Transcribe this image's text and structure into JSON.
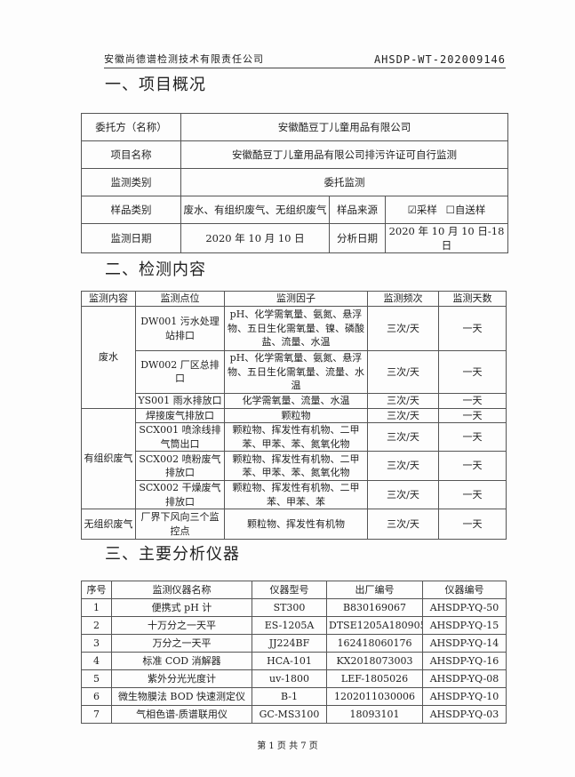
{
  "header": {
    "company": "安徽尚德谱检测技术有限责任公司",
    "report_no": "AHSDP-WT-202009146"
  },
  "section1": {
    "title": "一、项目概况",
    "client_label": "委托方（名称）",
    "client": "安徽酷豆丁儿童用品有限公司",
    "project_label": "项目名称",
    "project": "安徽酷豆丁儿童用品有限公司排污许证可自行监测",
    "type_label": "监测类别",
    "type": "委托监测",
    "sample_type_label": "样品类别",
    "sample_type": "废水、有组织废气、无组织废气",
    "sample_source_label": "样品来源",
    "sample_source_options": [
      {
        "label": "☑采样",
        "checked": true
      },
      {
        "label": "☐自送样",
        "checked": false
      }
    ],
    "monitor_date_label": "监测日期",
    "monitor_date": "2020 年 10 月 10 日",
    "analysis_date_label": "分析日期",
    "analysis_date": "2020 年 10 月 10 日-18 日"
  },
  "section2": {
    "title": "二、检测内容",
    "headers": [
      "监测内容",
      "监测点位",
      "监测因子",
      "监测频次",
      "监测天数"
    ],
    "groups": [
      "废水",
      "有组织废气",
      "无组织废气"
    ],
    "rows": [
      {
        "point": "DW001 污水处理站排口",
        "factors": "pH、化学需氧量、氨氮、悬浮物、五日生化需氧量、镍、磷酸盐、流量、水温",
        "freq": "三次/天",
        "days": "一天"
      },
      {
        "point": "DW002 厂区总排口",
        "factors": "pH、化学需氧量、氨氮、悬浮物、五日生化需氧量、流量、水温",
        "freq": "三次/天",
        "days": "一天"
      },
      {
        "point": "YS001 雨水排放口",
        "factors": "化学需氧量、流量、水温",
        "freq": "三次/天",
        "days": "一天"
      },
      {
        "point": "焊接废气排放口",
        "factors": "颗粒物",
        "freq": "三次/天",
        "days": "一天"
      },
      {
        "point": "SCX001 喷涂线排气筒出口",
        "factors": "颗粒物、挥发性有机物、二甲苯、甲苯、苯、氮氧化物",
        "freq": "三次/天",
        "days": "一天"
      },
      {
        "point": "SCX002 喷粉废气排放口",
        "factors": "颗粒物、挥发性有机物、二甲苯、甲苯、苯、氮氧化物",
        "freq": "三次/天",
        "days": "一天"
      },
      {
        "point": "SCX002 干燥废气排放口",
        "factors": "颗粒物、挥发性有机物、二甲苯、甲苯、苯",
        "freq": "三次/天",
        "days": "一天"
      },
      {
        "point": "厂界下风向三个监控点",
        "factors": "颗粒物、挥发性有机物",
        "freq": "三次/天",
        "days": "一天"
      }
    ]
  },
  "section3": {
    "title": "三、主要分析仪器",
    "headers": [
      "序号",
      "监测仪器名称",
      "仪器型号",
      "出厂编号",
      "仪器编号"
    ],
    "rows": [
      [
        "1",
        "便携式 pH 计",
        "ST300",
        "B830169067",
        "AHSDP-YQ-50"
      ],
      [
        "2",
        "十万分之一天平",
        "ES-1205A",
        "DTSE1205A18090501",
        "AHSDP-YQ-15"
      ],
      [
        "3",
        "万分之一天平",
        "JJ224BF",
        "162418060176",
        "AHSDP-YQ-14"
      ],
      [
        "4",
        "标准 COD 消解器",
        "HCA-101",
        "KX2018073003",
        "AHSDP-YQ-16"
      ],
      [
        "5",
        "紫外分光光度计",
        "uv-1800",
        "LEF-1805026",
        "AHSDP-YQ-08"
      ],
      [
        "6",
        "微生物膜法 BOD 快速测定仪",
        "B-1",
        "1202011030006",
        "AHSDP-YQ-10"
      ],
      [
        "7",
        "气相色谱-质谱联用仪",
        "GC-MS3100",
        "18093101",
        "AHSDP-YQ-03"
      ]
    ]
  },
  "footer": {
    "page": "第 1 页 共 7 页"
  }
}
